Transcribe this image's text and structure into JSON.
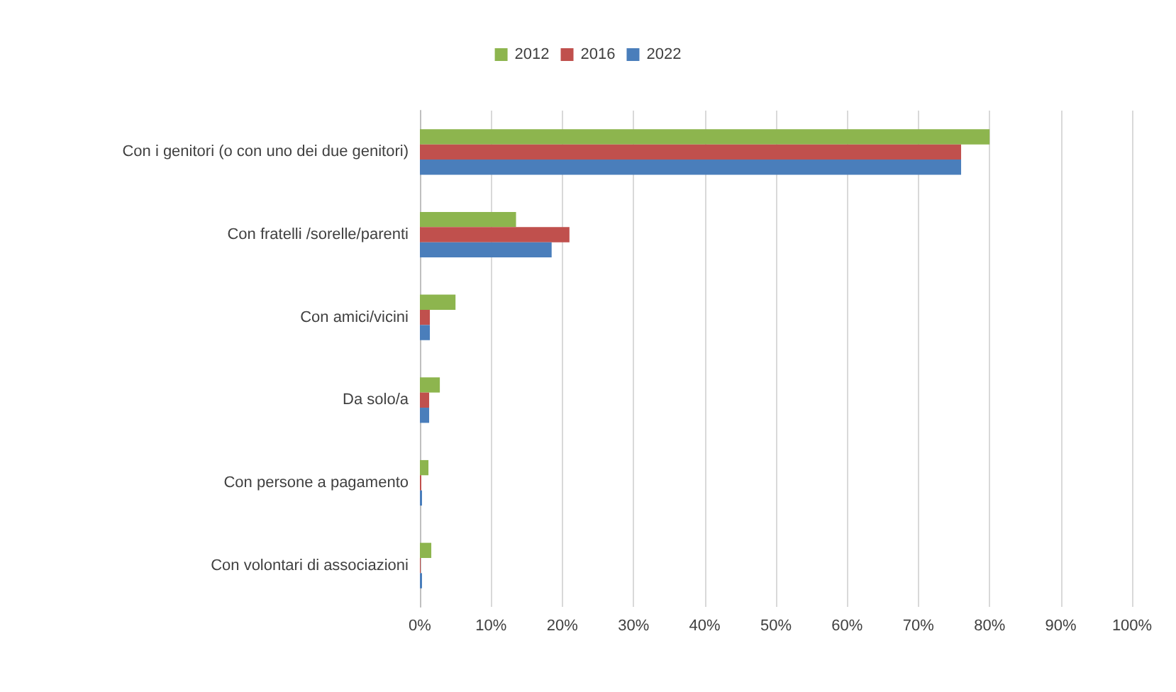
{
  "chart_data": {
    "type": "bar",
    "orientation": "horizontal",
    "categories": [
      "Con i genitori (o con uno dei due genitori)",
      "Con fratelli /sorelle/parenti",
      "Con amici/vicini",
      "Da solo/a",
      "Con persone a pagamento",
      "Con volontari di associazioni"
    ],
    "series": [
      {
        "name": "2012",
        "color": "#8db54e",
        "values": [
          80,
          13.5,
          5,
          2.8,
          1.2,
          1.6
        ]
      },
      {
        "name": "2016",
        "color": "#c0504d",
        "values": [
          76,
          21,
          1.4,
          1.3,
          0.2,
          0.1
        ]
      },
      {
        "name": "2022",
        "color": "#4a7ebb",
        "values": [
          76,
          18.5,
          1.4,
          1.3,
          0.3,
          0.3
        ]
      }
    ],
    "xlim": [
      0,
      100
    ],
    "xticks": [
      {
        "value": 0,
        "label": "0%"
      },
      {
        "value": 10,
        "label": "10%"
      },
      {
        "value": 20,
        "label": "20%"
      },
      {
        "value": 30,
        "label": "30%"
      },
      {
        "value": 40,
        "label": "40%"
      },
      {
        "value": 50,
        "label": "50%"
      },
      {
        "value": 60,
        "label": "60%"
      },
      {
        "value": 70,
        "label": "70%"
      },
      {
        "value": 80,
        "label": "80%"
      },
      {
        "value": 90,
        "label": "90%"
      },
      {
        "value": 100,
        "label": "100%"
      }
    ],
    "grid": "x",
    "legend": "top"
  }
}
